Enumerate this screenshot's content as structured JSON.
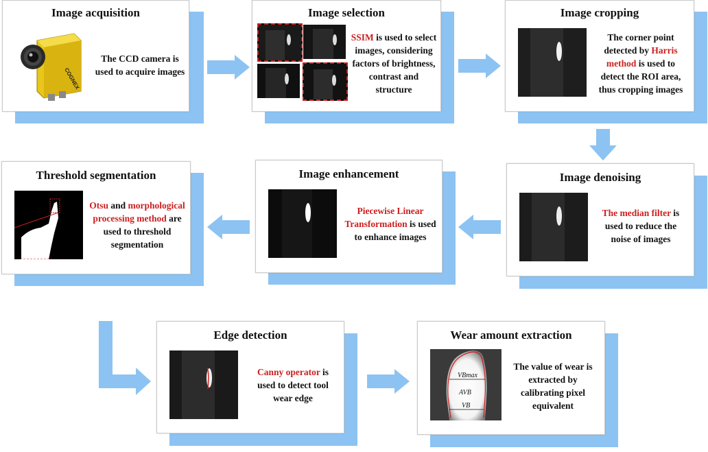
{
  "steps": {
    "acquisition": {
      "title": "Image acquisition",
      "desc": [
        "The CCD camera is",
        "used to acquire images"
      ],
      "camera_brand": "COGNEX"
    },
    "selection": {
      "title": "Image selection",
      "hl": "SSIM",
      "desc_rest": " is used to select",
      "desc": [
        "images, considering",
        "factors of brightness,",
        "contrast and",
        "structure"
      ]
    },
    "cropping": {
      "title": "Image cropping",
      "desc1": "The corner point",
      "desc2_pre": "detected by ",
      "hl1": "Harris",
      "hl2": "method",
      "desc3_post": " is used to",
      "desc4": "detect the ROI area,",
      "desc5": "thus cropping images"
    },
    "denoising": {
      "title": "Image denoising",
      "hl": "The median filter",
      "desc_rest": " is",
      "desc": [
        "used to reduce the",
        "noise of images"
      ]
    },
    "enhancement": {
      "title": "Image enhancement",
      "hl1": "Piecewise Linear",
      "hl2": "Transformation",
      "desc_rest": " is used",
      "desc": [
        "to enhance images"
      ]
    },
    "threshold": {
      "title": "Threshold segmentation",
      "hl1": "Otsu",
      "mid1": " and ",
      "hl2": "morphological",
      "hl3": "processing method",
      "mid2": " are",
      "desc": [
        "used to threshold",
        "segmentation"
      ]
    },
    "edge": {
      "title": "Edge detection",
      "hl": "Canny operator",
      "desc_rest": " is",
      "desc": [
        "used to detect tool",
        "wear edge"
      ]
    },
    "wear": {
      "title": "Wear amount extraction",
      "desc": [
        "The value of wear is",
        "extracted by",
        "calibrating pixel",
        "equivalent"
      ],
      "labels": {
        "vbmax": "VBmax",
        "avb": "AVB",
        "vb": "VB"
      }
    }
  },
  "colors": {
    "accent": "#cc1f1f",
    "shadow": "#8cc3f2",
    "arrow": "#8cc3f2"
  }
}
